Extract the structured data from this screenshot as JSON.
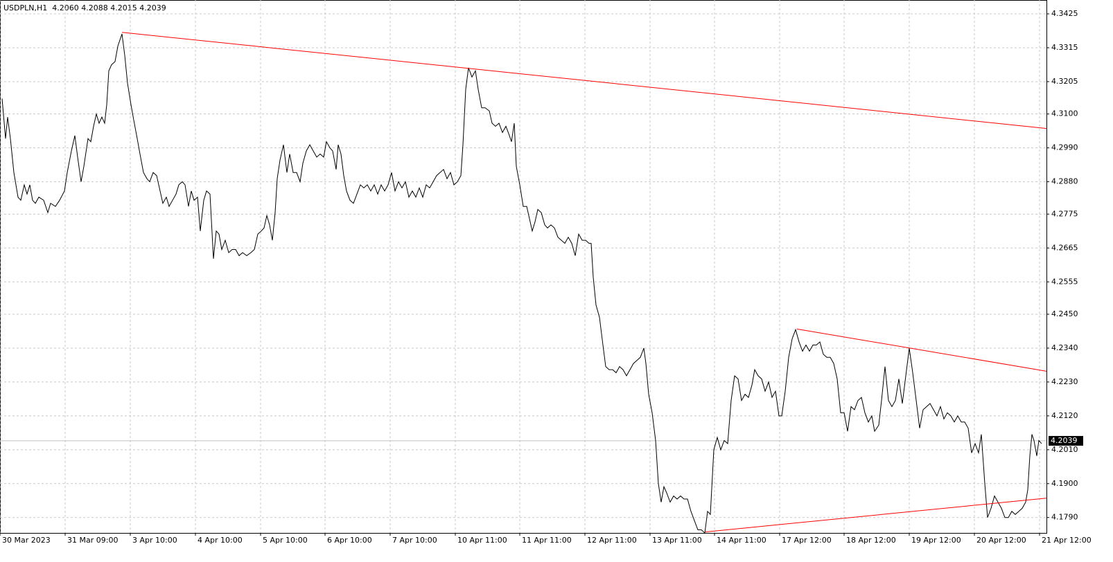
{
  "chart_data": {
    "type": "line",
    "title": "USDPLN,H1  4.2060 4.2088 4.2015 4.2039",
    "color": "#000000",
    "grid": true,
    "xlim": [
      0,
      377.5
    ],
    "ylim": [
      4.174,
      4.347
    ],
    "xticks": [
      {
        "value": 0,
        "label": "30 Mar 2023"
      },
      {
        "value": 23.5,
        "label": "31 Mar 09:00"
      },
      {
        "value": 47,
        "label": "3 Apr 10:00"
      },
      {
        "value": 70.5,
        "label": "4 Apr 10:00"
      },
      {
        "value": 94,
        "label": "5 Apr 10:00"
      },
      {
        "value": 117.25,
        "label": "6 Apr 10:00"
      },
      {
        "value": 140.75,
        "label": "7 Apr 10:00"
      },
      {
        "value": 164.25,
        "label": "10 Apr 11:00"
      },
      {
        "value": 187.5,
        "label": "11 Apr 11:00"
      },
      {
        "value": 211,
        "label": "12 Apr 11:00"
      },
      {
        "value": 234.5,
        "label": "13 Apr 11:00"
      },
      {
        "value": 257.75,
        "label": "14 Apr 11:00"
      },
      {
        "value": 281.25,
        "label": "17 Apr 12:00"
      },
      {
        "value": 304.5,
        "label": "18 Apr 12:00"
      },
      {
        "value": 328,
        "label": "19 Apr 12:00"
      },
      {
        "value": 351.5,
        "label": "20 Apr 12:00"
      },
      {
        "value": 375,
        "label": "21 Apr 12:00"
      }
    ],
    "yticks": [
      4.3425,
      4.3315,
      4.3205,
      {
        "value": 4.31,
        "label": "4.3100"
      },
      {
        "value": 4.299,
        "label": "4.2990"
      },
      {
        "value": 4.288,
        "label": "4.2880"
      },
      4.2775,
      4.2665,
      4.2555,
      {
        "value": 4.245,
        "label": "4.2450"
      },
      {
        "value": 4.234,
        "label": "4.2340"
      },
      {
        "value": 4.223,
        "label": "4.2230"
      },
      {
        "value": 4.212,
        "label": "4.2120"
      },
      {
        "value": 4.201,
        "label": "4.2010"
      },
      {
        "value": 4.19,
        "label": "4.1900"
      },
      {
        "value": 4.179,
        "label": "4.1790"
      }
    ],
    "current_price": 4.2039,
    "x": [
      0.75,
      2,
      2.75,
      3.75,
      5,
      6.5,
      7.5,
      8.75,
      9.75,
      10.75,
      11.75,
      12.75,
      14,
      15.75,
      17.25,
      18.25,
      20,
      21.5,
      23.25,
      24.25,
      25.75,
      27,
      28,
      29.25,
      30.25,
      31.75,
      32.75,
      33.75,
      34.75,
      35.75,
      36.75,
      37.75,
      38.5,
      39.25,
      40.25,
      41.5,
      42.5,
      44,
      45,
      46,
      47.25,
      48.25,
      49.5,
      50.5,
      51.75,
      53,
      54,
      55.25,
      56.5,
      57.75,
      58.75,
      60,
      61,
      62.25,
      63.5,
      64.5,
      65.75,
      66.75,
      68,
      69,
      70,
      71.25,
      72.25,
      73.5,
      74.5,
      75.75,
      77,
      78,
      79,
      80,
      81.25,
      82.5,
      83.75,
      85,
      86.25,
      87.5,
      89,
      90.5,
      91.75,
      93,
      94.25,
      95.25,
      96.25,
      97.25,
      98.25,
      99.25,
      100,
      101,
      102.25,
      103.5,
      104.5,
      105.75,
      107,
      108.25,
      109.25,
      110.5,
      111.75,
      113,
      114.25,
      115.5,
      116.75,
      117.75,
      119,
      120,
      121.25,
      122,
      123,
      124,
      125,
      126.25,
      127.5,
      128.75,
      130,
      131.25,
      132.5,
      133.75,
      135,
      136.25,
      137.5,
      138.75,
      140,
      141.25,
      142.5,
      143.75,
      145,
      146.25,
      147.5,
      148.75,
      150,
      151.25,
      152.5,
      153.75,
      155,
      156.25,
      157.5,
      158.75,
      160,
      161.25,
      162.5,
      163.75,
      165,
      166.25,
      167,
      168,
      169,
      170.25,
      171.5,
      172.5,
      173.75,
      175,
      176.5,
      177.5,
      178.75,
      180,
      181.25,
      182.5,
      183.75,
      184.5,
      185.5,
      186.25,
      187.5,
      188.75,
      190,
      191.25,
      192,
      193,
      194,
      195.25,
      196.5,
      197.5,
      198.75,
      200,
      201.25,
      202.5,
      203.75,
      205,
      206.25,
      207.5,
      208.75,
      210,
      211.25,
      212.5,
      213.25,
      214,
      215,
      216.25,
      217.5,
      218.5,
      219.75,
      221,
      222.25,
      223.5,
      224.75,
      226,
      227.25,
      228.5,
      229.75,
      231,
      232.25,
      233,
      234,
      235.25,
      236.5,
      237.5,
      238.5,
      239.5,
      240.5,
      241.75,
      243,
      244.25,
      245.5,
      246.75,
      248,
      249.25,
      250.5,
      251.75,
      253,
      254.25,
      255.25,
      256.25,
      257.5,
      258.75,
      260,
      261.25,
      262.5,
      263.75,
      265,
      266.25,
      267.5,
      268.75,
      270,
      271.25,
      272.25,
      273.5,
      274.75,
      276,
      277.25,
      278.5,
      279.75,
      281,
      282,
      283.25,
      284.5,
      285.75,
      287,
      288.25,
      289.5,
      290.75,
      292,
      293.25,
      294.5,
      295.75,
      297,
      298.25,
      299.5,
      300.75,
      302,
      303.25,
      304.5,
      305.75,
      307,
      308.25,
      309.5,
      310.75,
      312,
      313.25,
      314.5,
      315.5,
      317,
      318,
      319.25,
      320.5,
      321.75,
      323,
      324.25,
      325.5,
      326.75,
      328,
      329.25,
      330.5,
      331.75,
      333,
      334.25,
      335.5,
      336.75,
      338,
      339.25,
      340.5,
      341.75,
      343,
      344.25,
      345.5,
      346.75,
      348,
      349.25,
      350.5,
      351.75,
      353,
      354,
      355.25,
      356.25,
      357.5,
      358.75,
      360,
      361.25,
      362.5,
      363.75,
      365,
      366.25,
      367.5,
      368.75,
      370,
      370.75,
      371.5,
      372.25,
      373,
      374,
      374.75,
      375.75
    ],
    "values": [
      4.315,
      4.302,
      4.309,
      4.302,
      4.291,
      4.283,
      4.282,
      4.287,
      4.284,
      4.287,
      4.282,
      4.281,
      4.283,
      4.282,
      4.278,
      4.281,
      4.28,
      4.282,
      4.285,
      4.291,
      4.298,
      4.303,
      4.296,
      4.288,
      4.293,
      4.302,
      4.301,
      4.306,
      4.31,
      4.307,
      4.309,
      4.307,
      4.313,
      4.324,
      4.326,
      4.327,
      4.332,
      4.336,
      4.329,
      4.32,
      4.313,
      4.308,
      4.302,
      4.297,
      4.291,
      4.289,
      4.288,
      4.291,
      4.29,
      4.285,
      4.281,
      4.283,
      4.28,
      4.282,
      4.284,
      4.287,
      4.288,
      4.287,
      4.28,
      4.285,
      4.282,
      4.283,
      4.272,
      4.282,
      4.285,
      4.284,
      4.263,
      4.272,
      4.271,
      4.266,
      4.269,
      4.265,
      4.266,
      4.266,
      4.264,
      4.265,
      4.264,
      4.265,
      4.266,
      4.271,
      4.272,
      4.273,
      4.277,
      4.274,
      4.269,
      4.278,
      4.289,
      4.295,
      4.3,
      4.291,
      4.297,
      4.291,
      4.291,
      4.288,
      4.294,
      4.298,
      4.3,
      4.298,
      4.296,
      4.297,
      4.296,
      4.301,
      4.299,
      4.298,
      4.292,
      4.3,
      4.297,
      4.29,
      4.285,
      4.282,
      4.281,
      4.284,
      4.287,
      4.286,
      4.287,
      4.285,
      4.287,
      4.284,
      4.287,
      4.285,
      4.287,
      4.291,
      4.285,
      4.288,
      4.286,
      4.288,
      4.283,
      4.285,
      4.283,
      4.286,
      4.283,
      4.287,
      4.286,
      4.288,
      4.29,
      4.291,
      4.292,
      4.289,
      4.291,
      4.287,
      4.288,
      4.29,
      4.3,
      4.318,
      4.325,
      4.322,
      4.324,
      4.318,
      4.312,
      4.312,
      4.311,
      4.307,
      4.306,
      4.307,
      4.304,
      4.306,
      4.303,
      4.301,
      4.307,
      4.293,
      4.287,
      4.28,
      4.28,
      4.275,
      4.272,
      4.275,
      4.279,
      4.278,
      4.274,
      4.273,
      4.274,
      4.273,
      4.27,
      4.269,
      4.268,
      4.27,
      4.268,
      4.264,
      4.271,
      4.269,
      4.269,
      4.268,
      4.268,
      4.257,
      4.248,
      4.244,
      4.235,
      4.228,
      4.227,
      4.227,
      4.226,
      4.228,
      4.227,
      4.225,
      4.227,
      4.229,
      4.23,
      4.231,
      4.234,
      4.229,
      4.219,
      4.213,
      4.204,
      4.19,
      4.184,
      4.189,
      4.187,
      4.184,
      4.186,
      4.185,
      4.186,
      4.185,
      4.185,
      4.181,
      4.178,
      4.175,
      4.175,
      4.174,
      4.181,
      4.18,
      4.201,
      4.205,
      4.201,
      4.204,
      4.203,
      4.217,
      4.225,
      4.224,
      4.217,
      4.219,
      4.218,
      4.222,
      4.227,
      4.225,
      4.224,
      4.22,
      4.223,
      4.218,
      4.22,
      4.212,
      4.212,
      4.22,
      4.231,
      4.237,
      4.24,
      4.236,
      4.233,
      4.235,
      4.233,
      4.235,
      4.235,
      4.236,
      4.232,
      4.231,
      4.231,
      4.229,
      4.224,
      4.213,
      4.213,
      4.207,
      4.215,
      4.214,
      4.217,
      4.218,
      4.213,
      4.21,
      4.212,
      4.207,
      4.209,
      4.217,
      4.228,
      4.217,
      4.215,
      4.217,
      4.224,
      4.216,
      4.225,
      4.234,
      4.226,
      4.217,
      4.208,
      4.214,
      4.215,
      4.216,
      4.214,
      4.212,
      4.215,
      4.211,
      4.213,
      4.212,
      4.21,
      4.212,
      4.21,
      4.21,
      4.208,
      4.2,
      4.203,
      4.2,
      4.206,
      4.19,
      4.179,
      4.182,
      4.186,
      4.184,
      4.182,
      4.179,
      4.179,
      4.181,
      4.18,
      4.181,
      4.182,
      4.184,
      4.188,
      4.199,
      4.206,
      4.204,
      4.199,
      4.204,
      4.203
    ],
    "trendline_color": "#ff0000",
    "trendlines": [
      {
        "x": [
          44,
          377.5
        ],
        "values": [
          4.3365,
          4.3053
        ]
      },
      {
        "x": [
          287.5,
          377.5
        ],
        "values": [
          4.2402,
          4.2265
        ]
      },
      {
        "x": [
          254.25,
          377.5
        ],
        "values": [
          4.1743,
          4.1853
        ]
      }
    ]
  }
}
